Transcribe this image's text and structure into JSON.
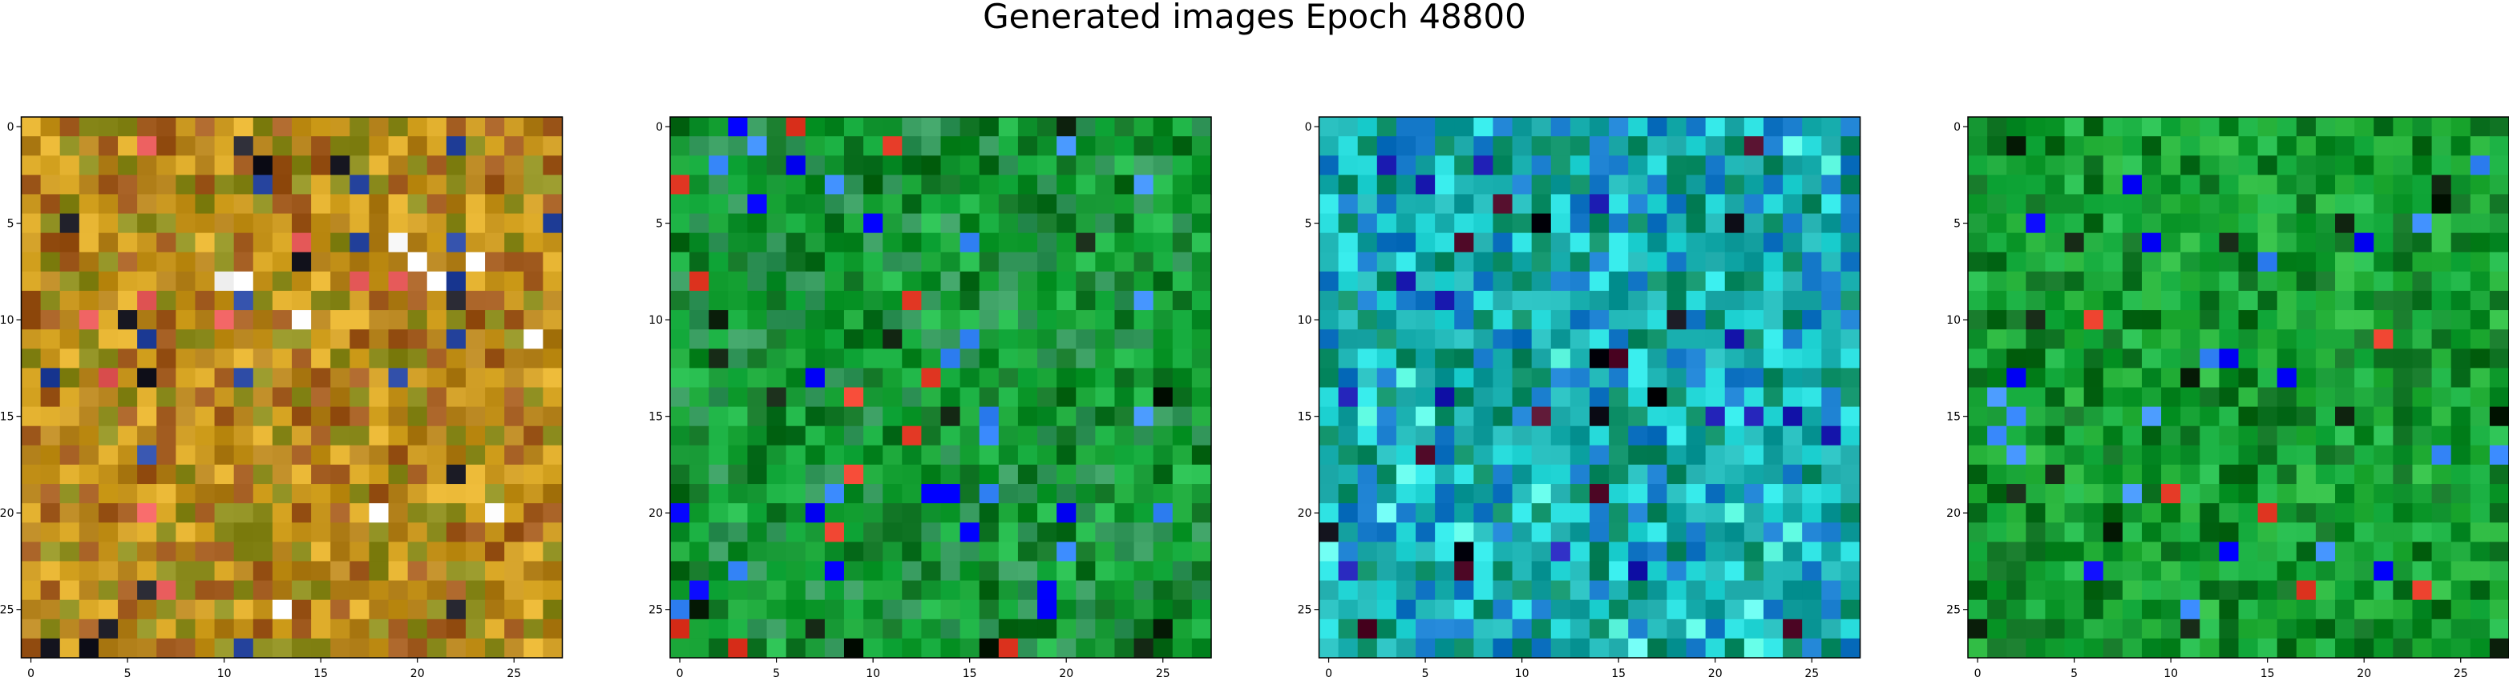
{
  "figure": {
    "title": "Generated images Epoch 48800"
  },
  "chart_data": [
    {
      "type": "heatmap",
      "title": "",
      "xlabel": "",
      "ylabel": "",
      "grid": false,
      "image_shape": [
        28,
        28,
        3
      ],
      "xlim": [
        -0.5,
        27.5
      ],
      "ylim": [
        27.5,
        -0.5
      ],
      "xticks": [
        0,
        5,
        10,
        15,
        20,
        25
      ],
      "yticks": [
        0,
        5,
        10,
        15,
        20,
        25
      ],
      "dominant_colors": [
        "#c8961e",
        "#b4821c",
        "#8c8c1e",
        "#dcaa28",
        "#a05a1e"
      ],
      "accent_colors": [
        "#ffffff",
        "#1e1e28",
        "#2846a0",
        "#e65a5a"
      ]
    },
    {
      "type": "heatmap",
      "title": "",
      "xlabel": "",
      "ylabel": "",
      "grid": false,
      "image_shape": [
        28,
        28,
        3
      ],
      "xlim": [
        -0.5,
        27.5
      ],
      "ylim": [
        27.5,
        -0.5
      ],
      "xticks": [
        0,
        5,
        10,
        15,
        20,
        25
      ],
      "yticks": [
        0,
        5,
        10,
        15,
        20,
        25
      ],
      "dominant_colors": [
        "#0a8c28",
        "#14a032",
        "#0a6e1e",
        "#1eb446",
        "#32965a"
      ],
      "accent_colors": [
        "#0a1e0a",
        "#e63c28",
        "#3c8cff",
        "#0000ff"
      ]
    },
    {
      "type": "heatmap",
      "title": "",
      "xlabel": "",
      "ylabel": "",
      "grid": false,
      "image_shape": [
        28,
        28,
        3
      ],
      "xlim": [
        -0.5,
        27.5
      ],
      "ylim": [
        27.5,
        -0.5
      ],
      "xticks": [
        0,
        5,
        10,
        15,
        20,
        25
      ],
      "yticks": [
        0,
        5,
        10,
        15,
        20,
        25
      ],
      "dominant_colors": [
        "#14a0a0",
        "#1eb4b4",
        "#0a8c64",
        "#28dcdc",
        "#1478c8"
      ],
      "accent_colors": [
        "#0a0a14",
        "#1e1eb4",
        "#500a28",
        "#64ffe6"
      ]
    },
    {
      "type": "heatmap",
      "title": "",
      "xlabel": "",
      "ylabel": "",
      "grid": false,
      "image_shape": [
        28,
        28,
        3
      ],
      "xlim": [
        -0.5,
        27.5
      ],
      "ylim": [
        27.5,
        -0.5
      ],
      "xticks": [
        0,
        5,
        10,
        15,
        20,
        25
      ],
      "yticks": [
        0,
        5,
        10,
        15,
        20,
        25
      ],
      "dominant_colors": [
        "#0a8c28",
        "#14a032",
        "#0a6e1e",
        "#1eb446",
        "#28b43c"
      ],
      "accent_colors": [
        "#0a1e0a",
        "#e63c28",
        "#3c8cff",
        "#0000ff"
      ]
    }
  ]
}
